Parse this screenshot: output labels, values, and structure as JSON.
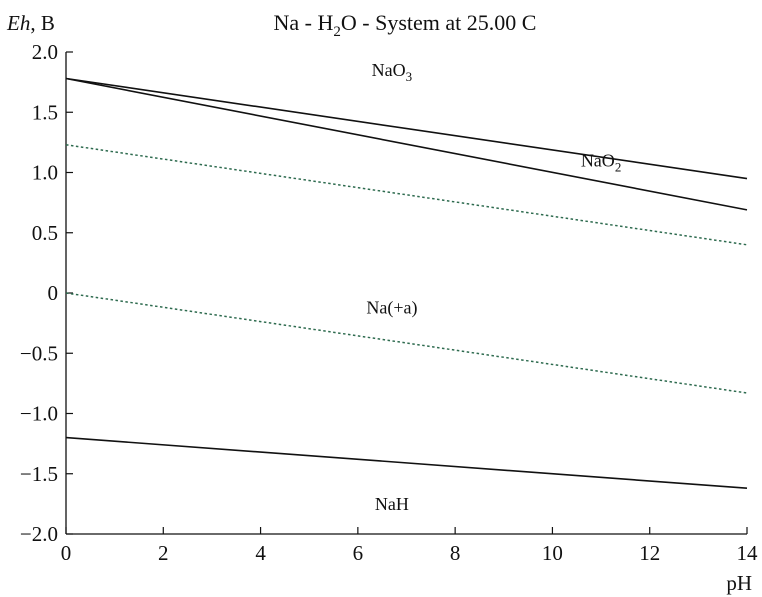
{
  "chart_data": {
    "type": "line",
    "title": "Na - H",
    "title_sub": "2",
    "title_rest": "O - System at 25.00 C",
    "ylabel_italic": "Eh",
    "ylabel_rest": ", B",
    "xlabel": "pH",
    "xlim": [
      0,
      14
    ],
    "ylim": [
      -2.0,
      2.0
    ],
    "x_ticks": [
      0,
      2,
      4,
      6,
      8,
      10,
      12,
      14
    ],
    "x_tick_labels": [
      "0",
      "2",
      "4",
      "6",
      "8",
      "10",
      "12",
      "14"
    ],
    "y_ticks": [
      2.0,
      1.5,
      1.0,
      0.5,
      0,
      -0.5,
      -1.0,
      -1.5,
      -2.0
    ],
    "y_tick_labels": [
      "2.0",
      "1.5",
      "1.0",
      "0.5",
      "0",
      "−0.5",
      "−1.0",
      "−1.5",
      "−2.0"
    ],
    "grid": false,
    "series": [
      {
        "style": "solid",
        "color": "#111111",
        "x": [
          0,
          14
        ],
        "y": [
          1.78,
          0.95
        ]
      },
      {
        "style": "solid",
        "color": "#111111",
        "x": [
          0,
          14
        ],
        "y": [
          1.78,
          0.69
        ]
      },
      {
        "style": "dotted",
        "color": "#2e6b4f",
        "x": [
          0,
          14
        ],
        "y": [
          1.23,
          0.4
        ]
      },
      {
        "style": "dotted",
        "color": "#2e6b4f",
        "x": [
          0,
          14
        ],
        "y": [
          0.0,
          -0.83
        ]
      },
      {
        "style": "solid",
        "color": "#111111",
        "x": [
          0,
          14
        ],
        "y": [
          -1.2,
          -1.62
        ]
      }
    ],
    "annotations": [
      {
        "base": "NaO",
        "sub": "3",
        "x": 6.7,
        "y": 1.8
      },
      {
        "base": "NaO",
        "sub": "2",
        "x": 11.0,
        "y": 1.05
      },
      {
        "base": "Na(+a)",
        "sub": "",
        "x": 6.7,
        "y": -0.17
      },
      {
        "base": "NaH",
        "sub": "",
        "x": 6.7,
        "y": -1.8
      }
    ]
  }
}
